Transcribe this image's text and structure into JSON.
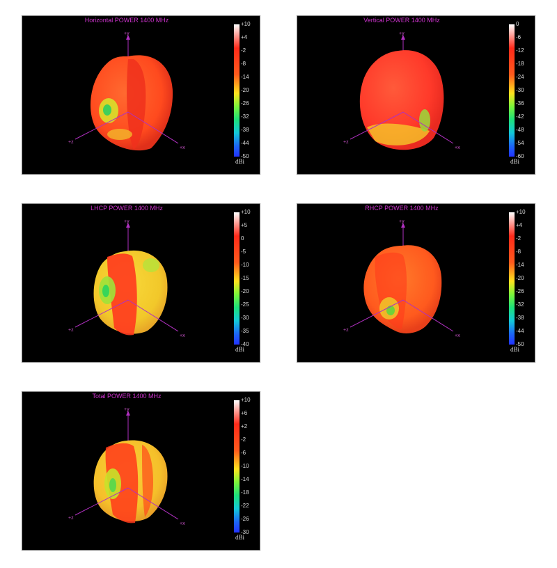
{
  "chart_data": [
    {
      "type": "other",
      "title": "Horizontal POWER 1400  MHz",
      "colorbar": {
        "ticks": [
          "+10",
          "+4",
          "-2",
          "-8",
          "-14",
          "-20",
          "-26",
          "-32",
          "-38",
          "-44",
          "-50"
        ],
        "unit": "dBi",
        "range": [
          -50,
          10
        ]
      },
      "axes": {
        "y": "+y",
        "x": "+x",
        "z": "+z"
      },
      "colors": {
        "body": "#ff4a1e",
        "band": "#f0301c",
        "patch": "#d8e02a",
        "patch2": "#3fcf5a"
      }
    },
    {
      "type": "other",
      "title": "Vertical POWER 1400  MHz",
      "colorbar": {
        "ticks": [
          "0",
          "-6",
          "-12",
          "-18",
          "-24",
          "-30",
          "-36",
          "-42",
          "-48",
          "-54",
          "-60"
        ],
        "unit": "dBi",
        "range": [
          -60,
          0
        ]
      },
      "axes": {
        "y": "+y",
        "x": "+x",
        "z": "+z"
      },
      "colors": {
        "body": "#ff3a2a",
        "band": "#ff5a2a",
        "patch": "#f5d22a",
        "patch2": "#9fd23a"
      }
    },
    {
      "type": "other",
      "title": "LHCP POWER 1400  MHz",
      "colorbar": {
        "ticks": [
          "+10",
          "+5",
          "0",
          "-5",
          "-10",
          "-15",
          "-20",
          "-25",
          "-30",
          "-35",
          "-40"
        ],
        "unit": "dBi",
        "range": [
          -40,
          10
        ]
      },
      "axes": {
        "y": "+y",
        "x": "+x",
        "z": "+z"
      },
      "colors": {
        "body": "#f2c82a",
        "band": "#ff3a1e",
        "patch": "#9fe23a",
        "patch2": "#37d65a"
      }
    },
    {
      "type": "other",
      "title": "RHCP POWER 1400  MHz",
      "colorbar": {
        "ticks": [
          "+10",
          "+4",
          "-2",
          "-8",
          "-14",
          "-20",
          "-26",
          "-32",
          "-38",
          "-44",
          "-50"
        ],
        "unit": "dBi",
        "range": [
          -50,
          10
        ]
      },
      "axes": {
        "y": "+y",
        "x": "+x",
        "z": "+z"
      },
      "colors": {
        "body": "#ff5a1e",
        "band": "#ff3a1a",
        "patch": "#f0c82a",
        "patch2": "#6fd23a"
      }
    },
    {
      "type": "other",
      "title": "Total POWER 1400  MHz",
      "colorbar": {
        "ticks": [
          "+10",
          "+6",
          "+2",
          "-2",
          "-6",
          "-10",
          "-14",
          "-18",
          "-22",
          "-26",
          "-30"
        ],
        "unit": "dBi",
        "range": [
          -30,
          10
        ]
      },
      "axes": {
        "y": "+y",
        "x": "+x",
        "z": "+z"
      },
      "colors": {
        "body": "#f5c02a",
        "band": "#ff3a1a",
        "patch": "#c8e22a",
        "patch2": "#5fd84a"
      }
    }
  ]
}
